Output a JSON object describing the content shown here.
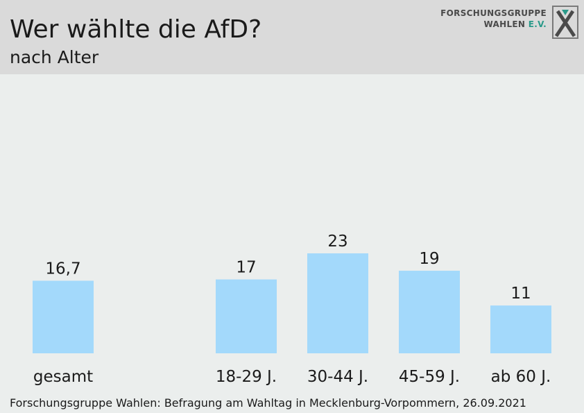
{
  "header": {
    "title": "Wer wählte die AfD?",
    "subtitle": "nach Alter",
    "logo_line1": "FORSCHUNGSGRUPPE",
    "logo_line2_main": "WAHLEN ",
    "logo_line2_accent": "E.V."
  },
  "source": "Forschungsgruppe Wahlen: Befragung am Wahltag in Mecklenburg-Vorpommern, 26.09.2021",
  "colors": {
    "bar": "#a3d9fb",
    "header_bg": "#dadada",
    "plot_bg": "#ebeeed",
    "logo_accent": "#2a9a8a"
  },
  "chart_data": {
    "type": "bar",
    "title": "Wer wählte die AfD?",
    "subtitle": "nach Alter",
    "categories": [
      "gesamt",
      "18-29 J.",
      "30-44 J.",
      "45-59 J.",
      "ab 60 J."
    ],
    "values": [
      16.7,
      17,
      23,
      19,
      11
    ],
    "value_labels": [
      "16,7",
      "17",
      "23",
      "19",
      "11"
    ],
    "xlabel": "",
    "ylabel": "",
    "ylim": [
      0,
      23
    ],
    "grid": false,
    "legend": "none"
  }
}
